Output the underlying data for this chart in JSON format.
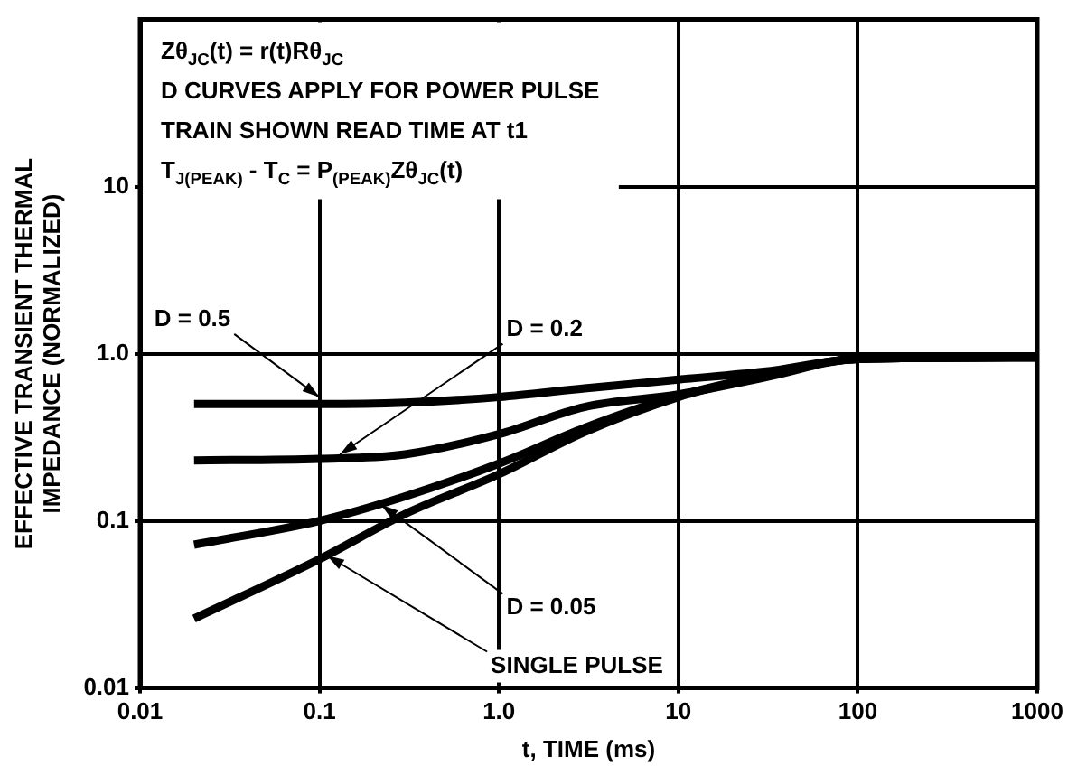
{
  "chart_data": {
    "type": "line",
    "xlabel": "t, TIME (ms)",
    "ylabel": "EFFECTIVE TRANSIENT THERMAL\nIMPEDANCE (NORMALIZED)",
    "annotations": [
      "Zθ$_{JC}$(t) = r(t)Rθ$_{JC}$",
      "D CURVES APPLY FOR POWER PULSE",
      "TRAIN SHOWN READ TIME AT t1",
      "T$_{J(PEAK)}$ - T$_{C}$ = P$_{(PEAK)}$Zθ$_{JC}$(t)"
    ],
    "series": [
      {
        "name": "D = 0.5",
        "color": "#000000",
        "x": [
          0.02,
          0.1,
          0.3,
          1,
          3,
          10,
          30,
          100,
          1000
        ],
        "values": [
          0.5,
          0.5,
          0.51,
          0.55,
          0.62,
          0.7,
          0.78,
          0.93,
          0.95
        ]
      },
      {
        "name": "D = 0.2",
        "color": "#000000",
        "x": [
          0.02,
          0.1,
          0.3,
          1,
          3,
          10,
          30,
          100,
          1000
        ],
        "values": [
          0.23,
          0.235,
          0.25,
          0.33,
          0.48,
          0.57,
          0.72,
          0.93,
          0.95
        ]
      },
      {
        "name": "D = 0.05",
        "color": "#000000",
        "x": [
          0.02,
          0.1,
          0.3,
          1,
          3,
          10,
          30,
          100,
          1000
        ],
        "values": [
          0.072,
          0.1,
          0.14,
          0.22,
          0.36,
          0.56,
          0.74,
          0.93,
          0.95
        ]
      },
      {
        "name": "SINGLE PULSE",
        "color": "#000000",
        "x": [
          0.02,
          0.1,
          0.3,
          1,
          3,
          10,
          30,
          100,
          1000
        ],
        "values": [
          0.026,
          0.059,
          0.11,
          0.19,
          0.34,
          0.55,
          0.74,
          0.93,
          0.95
        ]
      }
    ],
    "xlim": [
      0.01,
      1000
    ],
    "ylim": [
      0.01,
      100
    ],
    "xticks": [
      0.01,
      0.1,
      {
        "value": 1,
        "label": "1.0"
      },
      10,
      100,
      1000
    ],
    "yticks": [
      0.01,
      0.1,
      {
        "value": 1,
        "label": "1.0"
      },
      10
    ],
    "log": "xy",
    "grid": true,
    "legend": false,
    "marker": "none",
    "line_style": "solid"
  }
}
